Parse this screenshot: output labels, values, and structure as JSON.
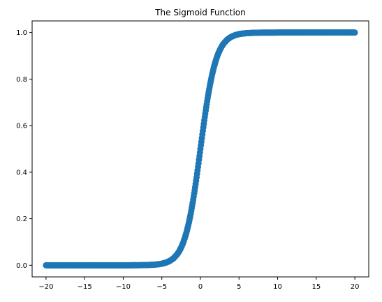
{
  "chart_data": {
    "type": "scatter",
    "title": "The Sigmoid Function",
    "xlabel": "",
    "ylabel": "",
    "xlim": [
      -21.8,
      21.8
    ],
    "ylim": [
      -0.05,
      1.05
    ],
    "xticks": [
      -20,
      -15,
      -10,
      -5,
      0,
      5,
      10,
      15,
      20
    ],
    "xtick_labels": [
      "−20",
      "−15",
      "−10",
      "−5",
      "0",
      "5",
      "10",
      "15",
      "20"
    ],
    "yticks": [
      0.0,
      0.2,
      0.4,
      0.6,
      0.8,
      1.0
    ],
    "ytick_labels": [
      "0.0",
      "0.2",
      "0.4",
      "0.6",
      "0.8",
      "1.0"
    ],
    "grid": false,
    "legend": "none",
    "marker_color": "#1f77b4",
    "series": [
      {
        "x": [
          -20,
          -19,
          -18,
          -17,
          -16,
          -15,
          -14,
          -13,
          -12,
          -11,
          -10,
          -9,
          -8,
          -7,
          -6,
          -5.5,
          -5,
          -4.5,
          -4,
          -3.5,
          -3,
          -2.75,
          -2.5,
          -2.25,
          -2,
          -1.75,
          -1.5,
          -1.25,
          -1,
          -0.75,
          -0.5,
          -0.25,
          0,
          0.25,
          0.5,
          0.75,
          1,
          1.25,
          1.5,
          1.75,
          2,
          2.25,
          2.5,
          2.75,
          3,
          3.5,
          4,
          4.5,
          5,
          5.5,
          6,
          7,
          8,
          9,
          10,
          11,
          12,
          13,
          14,
          15,
          16,
          17,
          18,
          19,
          20
        ],
        "y": [
          0.0,
          0.0,
          0.0,
          0.0,
          0.0,
          0.0,
          0.0,
          0.0,
          0.0,
          0.0,
          0.0,
          0.0,
          0.0003,
          0.0009,
          0.0025,
          0.0041,
          0.0067,
          0.011,
          0.018,
          0.0293,
          0.0474,
          0.0601,
          0.0759,
          0.0953,
          0.1192,
          0.148,
          0.1824,
          0.2227,
          0.2689,
          0.3208,
          0.3775,
          0.4378,
          0.5,
          0.5622,
          0.6225,
          0.6792,
          0.7311,
          0.7773,
          0.8176,
          0.852,
          0.8808,
          0.9047,
          0.9241,
          0.9399,
          0.9526,
          0.9707,
          0.982,
          0.989,
          0.9933,
          0.9959,
          0.9975,
          0.9991,
          0.9997,
          0.9999,
          1.0,
          1.0,
          1.0,
          1.0,
          1.0,
          1.0,
          1.0,
          1.0,
          1.0,
          1.0,
          1.0
        ]
      }
    ]
  }
}
